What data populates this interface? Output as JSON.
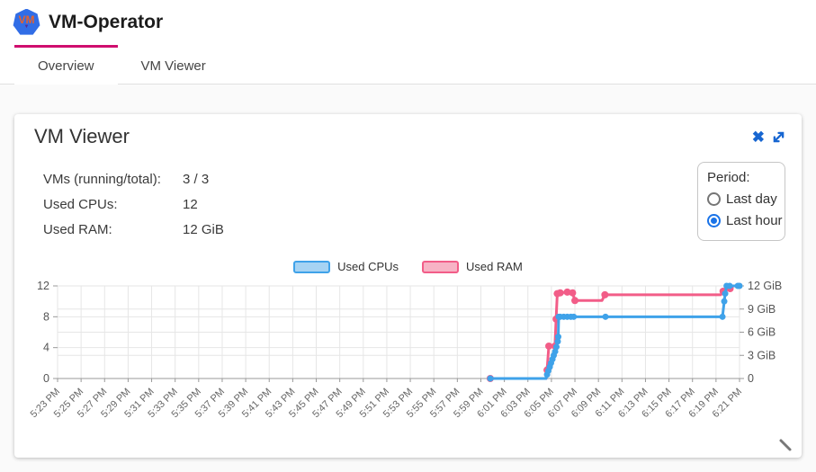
{
  "header": {
    "app_title": "VM-Operator",
    "logo_text": "VM"
  },
  "tabs": [
    {
      "label": "Overview",
      "active": true
    },
    {
      "label": "VM Viewer",
      "active": false
    }
  ],
  "card": {
    "title": "VM Viewer",
    "stats": [
      {
        "label": "VMs (running/total):",
        "value": "3 / 3"
      },
      {
        "label": "Used CPUs:",
        "value": "12"
      },
      {
        "label": "Used RAM:",
        "value": "12 GiB"
      }
    ],
    "period": {
      "label": "Period:",
      "options": [
        {
          "label": "Last day",
          "selected": false
        },
        {
          "label": "Last hour",
          "selected": true
        }
      ]
    }
  },
  "colors": {
    "tab_indicator": "#cf0e6e",
    "icon_blue": "#1766d1",
    "radio_blue": "#1a73e8",
    "grid": "#e6e6e6",
    "axis": "#999999",
    "axis_text": "#666666"
  },
  "chart_data": {
    "type": "line",
    "title": "",
    "xlabel": "",
    "ylabel_left": "Used CPUs",
    "ylabel_right": "Used RAM",
    "x_ticks": [
      "5:23 PM",
      "5:25 PM",
      "5:27 PM",
      "5:29 PM",
      "5:31 PM",
      "5:33 PM",
      "5:35 PM",
      "5:37 PM",
      "5:39 PM",
      "5:41 PM",
      "5:43 PM",
      "5:45 PM",
      "5:47 PM",
      "5:49 PM",
      "5:51 PM",
      "5:53 PM",
      "5:55 PM",
      "5:57 PM",
      "5:59 PM",
      "6:01 PM",
      "6:03 PM",
      "6:05 PM",
      "6:07 PM",
      "6:09 PM",
      "6:11 PM",
      "6:13 PM",
      "6:15 PM",
      "6:17 PM",
      "6:19 PM",
      "6:21 PM"
    ],
    "tick_interval_minutes": 2,
    "x_range_minutes": [
      0,
      58
    ],
    "y_left": {
      "ticks": [
        0,
        4,
        8,
        12
      ],
      "labels": [
        "0",
        "4",
        "8",
        "12"
      ],
      "min": 0,
      "max": 12
    },
    "y_right": {
      "ticks": [
        0,
        3,
        6,
        9,
        12
      ],
      "labels": [
        "0",
        "3 GiB",
        "6 GiB",
        "9 GiB",
        "12 GiB"
      ],
      "min": 0,
      "max": 12
    },
    "legend": [
      {
        "label": "Used CPUs",
        "color": "#3fa2e9",
        "fill": "#a6d3f3"
      },
      {
        "label": "Used RAM",
        "color": "#f25d88",
        "fill": "#f7b3c5"
      }
    ],
    "series": [
      {
        "name": "Used RAM",
        "axis": "right",
        "color": "#f25d88",
        "marker_r": 4,
        "points": [
          [
            36.8,
            0
          ],
          [
            41.55,
            0,
            0
          ],
          [
            41.63,
            1.1
          ],
          [
            41.78,
            4.2
          ],
          [
            42.3,
            4.2
          ],
          [
            42.4,
            7.7
          ],
          [
            42.5,
            11.0
          ],
          [
            42.75,
            11.1
          ],
          [
            43.35,
            11.2
          ],
          [
            43.8,
            11.1
          ],
          [
            44.0,
            10.1
          ],
          [
            46.3,
            10.1,
            0
          ],
          [
            46.55,
            10.85
          ],
          [
            56.4,
            10.85,
            0
          ],
          [
            56.6,
            11.3
          ],
          [
            57.2,
            11.65
          ]
        ]
      },
      {
        "name": "Used CPUs",
        "axis": "left",
        "color": "#3fa2e9",
        "marker_r": 3.5,
        "points": [
          [
            36.8,
            0
          ],
          [
            41.55,
            0,
            0
          ],
          [
            41.63,
            0.5
          ],
          [
            41.74,
            1.0
          ],
          [
            41.86,
            1.5
          ],
          [
            41.97,
            2.0
          ],
          [
            42.09,
            2.5
          ],
          [
            42.2,
            3.0
          ],
          [
            42.32,
            3.5
          ],
          [
            42.43,
            4.1
          ],
          [
            42.54,
            4.8
          ],
          [
            42.58,
            5.4
          ],
          [
            42.62,
            8
          ],
          [
            42.75,
            8
          ],
          [
            43.05,
            8
          ],
          [
            43.35,
            8
          ],
          [
            43.65,
            8
          ],
          [
            43.9,
            8
          ],
          [
            46.6,
            8
          ],
          [
            56.55,
            8
          ],
          [
            56.7,
            10
          ],
          [
            56.78,
            11
          ],
          [
            56.9,
            12
          ],
          [
            57.16,
            12
          ],
          [
            57.85,
            12
          ],
          [
            58,
            12
          ]
        ]
      }
    ]
  }
}
